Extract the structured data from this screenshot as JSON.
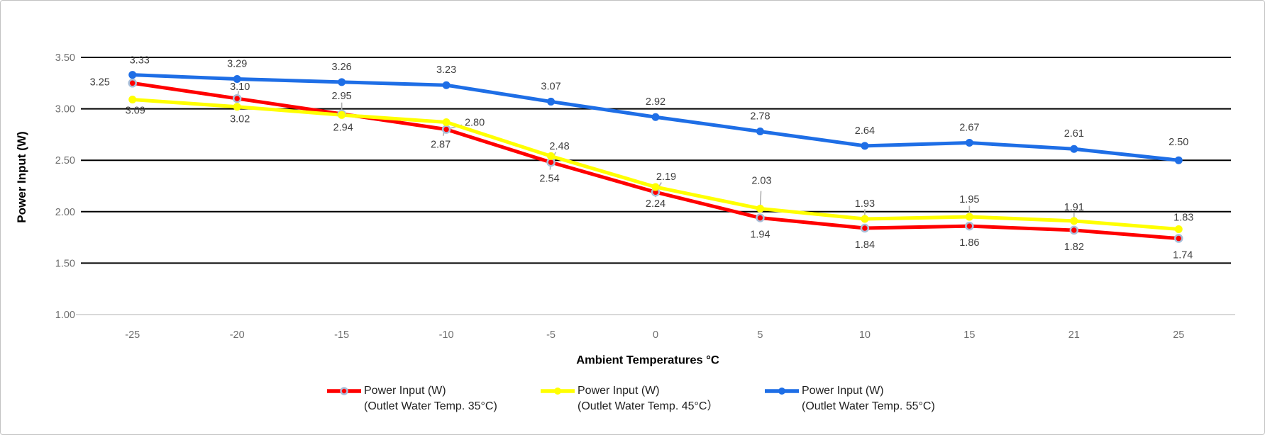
{
  "chart_data": {
    "type": "line",
    "title": "",
    "xlabel": "Ambient Temperatures °C",
    "ylabel": "Power Input (W)",
    "x_categories": [
      "-25",
      "-20",
      "-15",
      "-10",
      "-5",
      "0",
      "5",
      "10",
      "15",
      "21",
      "25"
    ],
    "y_ticks": [
      "3.50",
      "3.00",
      "2.50",
      "2.00",
      "1.50",
      "1.00"
    ],
    "ylim": [
      1.0,
      3.5
    ],
    "grid": "horizontal-black",
    "legend_position": "bottom",
    "series": [
      {
        "name": "Power Input (W)",
        "subtitle": "(Outlet Water Temp. 35°C)",
        "color": "#ff0000",
        "marker_ring": "#a8bfd9",
        "values": [
          3.25,
          3.1,
          2.95,
          2.8,
          2.48,
          2.19,
          1.94,
          1.84,
          1.86,
          1.82,
          1.74
        ]
      },
      {
        "name": "Power Input (W)",
        "subtitle": "(Outlet Water Temp. 45°C）",
        "color": "#ffff00",
        "marker_ring": null,
        "values": [
          3.09,
          3.02,
          2.94,
          2.87,
          2.54,
          2.24,
          2.03,
          1.93,
          1.95,
          1.91,
          1.83
        ]
      },
      {
        "name": "Power Input (W)",
        "subtitle": "(Outlet Water Temp. 55°C)",
        "color": "#1e6ee6",
        "marker_ring": null,
        "values": [
          3.33,
          3.29,
          3.26,
          3.23,
          3.07,
          2.92,
          2.78,
          2.64,
          2.67,
          2.61,
          2.5
        ]
      }
    ],
    "label_offsets": [
      [
        [
          -46,
          -2
        ],
        [
          4,
          -17
        ],
        [
          0,
          -26
        ],
        [
          40,
          -10
        ],
        [
          12,
          -23
        ],
        [
          15,
          -22
        ],
        [
          0,
          23
        ],
        [
          0,
          23
        ],
        [
          0,
          23
        ],
        [
          0,
          23
        ],
        [
          6,
          23
        ]
      ],
      [
        [
          4,
          15
        ],
        [
          4,
          17
        ],
        [
          2,
          17
        ],
        [
          -8,
          31
        ],
        [
          -2,
          31
        ],
        [
          0,
          23
        ],
        [
          2,
          -40
        ],
        [
          0,
          -22
        ],
        [
          0,
          -25
        ],
        [
          0,
          -20
        ],
        [
          7,
          -17
        ]
      ],
      [
        [
          10,
          -21
        ],
        [
          0,
          -22
        ],
        [
          0,
          -22
        ],
        [
          0,
          -22
        ],
        [
          0,
          -22
        ],
        [
          0,
          -22
        ],
        [
          0,
          -22
        ],
        [
          0,
          -22
        ],
        [
          0,
          -22
        ],
        [
          0,
          -22
        ],
        [
          0,
          -26
        ]
      ]
    ],
    "leader_points": [
      [
        1,
        2,
        3,
        4,
        5
      ],
      [
        3,
        4,
        5,
        6,
        7,
        8,
        9
      ],
      []
    ]
  },
  "colors": {
    "grid": "#000000",
    "baseline": "#d9d9d9",
    "tick_label": "#6e6e6e",
    "data_label": "#3f3f3f",
    "leader": "#b0b0b0",
    "background": "#ffffff"
  }
}
